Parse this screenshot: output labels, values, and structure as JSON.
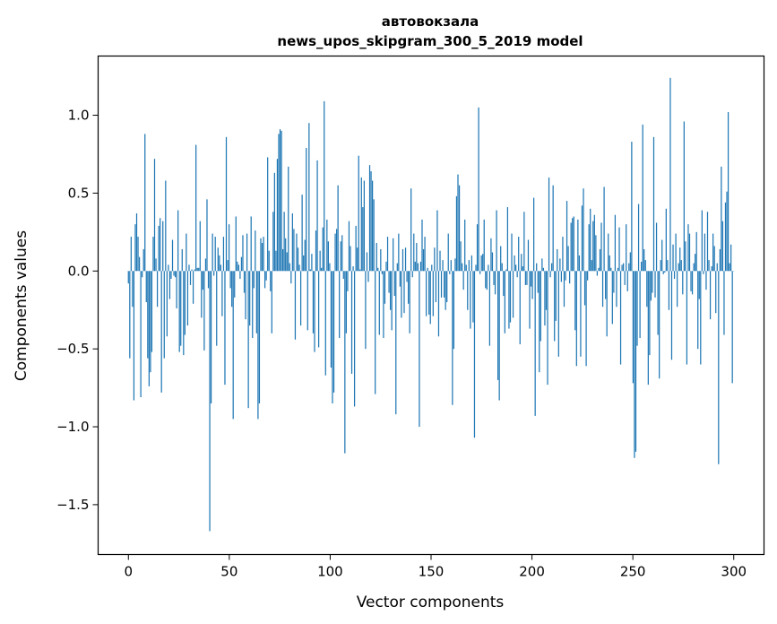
{
  "chart_data": {
    "type": "bar",
    "title_line1": "автовокзала",
    "title_line2": "news_upos_skipgram_300_5_2019 model",
    "xlabel": "Vector components",
    "ylabel": "Components values",
    "xlim": [
      -15,
      315
    ],
    "ylim": [
      -1.82,
      1.38
    ],
    "x_ticks": [
      0,
      50,
      100,
      150,
      200,
      250,
      300
    ],
    "x_tick_labels": [
      "0",
      "50",
      "100",
      "150",
      "200",
      "250",
      "300"
    ],
    "y_ticks": [
      -1.5,
      -1.0,
      -0.5,
      0.0,
      0.5,
      1.0
    ],
    "y_tick_labels": [
      "−1.5",
      "−1.0",
      "−0.5",
      "0.0",
      "0.5",
      "1.0"
    ],
    "bar_color": "#1f77b4",
    "values": [
      -0.08,
      -0.56,
      0.22,
      -0.23,
      -0.83,
      0.3,
      0.37,
      0.22,
      0.09,
      -0.81,
      -0.04,
      0.14,
      0.88,
      -0.2,
      -0.56,
      -0.74,
      -0.65,
      -0.52,
      0.22,
      0.72,
      0.08,
      -0.23,
      0.29,
      0.34,
      -0.78,
      0.32,
      -0.56,
      0.58,
      -0.42,
      0.04,
      -0.18,
      -0.05,
      0.2,
      -0.03,
      -0.04,
      -0.24,
      0.39,
      -0.52,
      -0.48,
      0.14,
      -0.54,
      -0.41,
      0.24,
      -0.35,
      0.04,
      -0.09,
      0.01,
      -0.21,
      0.01,
      0.81,
      0.02,
      0.02,
      0.32,
      -0.3,
      -0.12,
      -0.51,
      0.08,
      0.46,
      -0.11,
      -1.67,
      -0.85,
      0.24,
      -0.03,
      0.22,
      -0.48,
      0.15,
      0.1,
      0.04,
      -0.29,
      0.22,
      -0.73,
      0.86,
      0.07,
      0.3,
      -0.11,
      -0.23,
      -0.95,
      -0.17,
      0.35,
      0.06,
      0.04,
      -0.05,
      0.09,
      0.23,
      -0.14,
      -0.31,
      0.24,
      -0.88,
      -0.35,
      0.35,
      -0.43,
      -0.11,
      0.26,
      -0.4,
      -0.95,
      -0.85,
      0.21,
      0.18,
      0.22,
      -0.11,
      -0.06,
      0.73,
      0.13,
      -0.13,
      -0.4,
      0.38,
      0.63,
      0.13,
      0.72,
      0.88,
      0.91,
      0.9,
      0.14,
      0.38,
      0.21,
      0.12,
      0.67,
      0.05,
      -0.08,
      0.37,
      0.27,
      -0.44,
      0.24,
      0.15,
      0.04,
      -0.35,
      0.49,
      0.1,
      0.2,
      0.79,
      -0.38,
      0.95,
      0.01,
      0.11,
      -0.4,
      -0.52,
      0.26,
      0.71,
      -0.49,
      0.13,
      0.02,
      0.28,
      1.09,
      -0.67,
      0.33,
      0.19,
      0.05,
      -0.62,
      -0.85,
      -0.78,
      0.24,
      0.27,
      0.55,
      -0.43,
      0.19,
      0.23,
      -0.05,
      -1.17,
      -0.4,
      -0.13,
      0.32,
      0.16,
      -0.66,
      0.03,
      -0.87,
      0.29,
      0.15,
      0.74,
      0.01,
      0.6,
      0.41,
      0.58,
      -0.5,
      0.12,
      -0.07,
      0.68,
      0.64,
      0.58,
      0.46,
      -0.79,
      0.18,
      0.02,
      -0.41,
      0.14,
      -0.02,
      -0.43,
      -0.21,
      0.06,
      0.22,
      -0.14,
      -0.25,
      -0.38,
      0.21,
      -0.16,
      -0.92,
      0.05,
      0.24,
      -0.1,
      -0.3,
      0.14,
      -0.27,
      0.15,
      -0.07,
      -0.21,
      -0.4,
      0.53,
      -0.04,
      0.24,
      0.06,
      0.18,
      0.05,
      -1.0,
      0.06,
      0.33,
      0.14,
      0.22,
      -0.29,
      0.02,
      -0.28,
      -0.34,
      0.04,
      -0.29,
      0.15,
      -0.2,
      0.39,
      -0.42,
      0.13,
      -0.17,
      0.07,
      -0.17,
      -0.25,
      -0.2,
      0.24,
      -0.02,
      0.07,
      -0.86,
      -0.5,
      0.08,
      0.48,
      0.62,
      0.55,
      0.19,
      0.05,
      -0.12,
      0.33,
      0.04,
      -0.25,
      0.07,
      -0.37,
      0.1,
      -0.33,
      -1.07,
      0.04,
      0.3,
      1.05,
      -0.02,
      0.1,
      0.11,
      0.33,
      -0.11,
      -0.12,
      0.04,
      -0.48,
      0.21,
      0.12,
      -0.09,
      -0.15,
      0.39,
      -0.7,
      -0.83,
      0.16,
      0.05,
      -0.16,
      -0.4,
      0.01,
      0.41,
      -0.37,
      -0.33,
      0.24,
      -0.3,
      0.1,
      0.04,
      -0.04,
      0.22,
      -0.47,
      0.11,
      0.03,
      0.38,
      -0.09,
      -0.09,
      0.2,
      -0.37,
      -0.1,
      -0.18,
      0.47,
      -0.93,
      0.05,
      -0.14,
      -0.65,
      -0.45,
      0.08,
      0.02,
      -0.35,
      -0.25,
      -0.73,
      0.6,
      -0.04,
      0.05,
      0.55,
      -0.45,
      -0.32,
      0.14,
      -0.55,
      0.08,
      -0.07,
      0.22,
      -0.23,
      -0.06,
      0.45,
      0.16,
      -0.08,
      0.31,
      0.34,
      0.35,
      -0.38,
      -0.61,
      0.33,
      0.1,
      -0.55,
      0.42,
      0.53,
      -0.22,
      -0.61,
      -0.06,
      0.3,
      0.4,
      0.07,
      0.32,
      0.36,
      0.23,
      -0.03,
      0.02,
      0.14,
      0.31,
      -0.23,
      0.54,
      -0.18,
      -0.42,
      0.24,
      0.1,
      0.02,
      -0.34,
      -0.14,
      0.36,
      -0.23,
      0.02,
      0.28,
      -0.6,
      0.04,
      0.05,
      -0.09,
      0.3,
      -0.13,
      0.05,
      0.12,
      0.83,
      -0.72,
      -1.2,
      -1.16,
      -0.48,
      0.43,
      -0.43,
      0.06,
      0.94,
      0.14,
      0.07,
      -0.23,
      -0.73,
      -0.54,
      -0.19,
      -0.14,
      0.86,
      -0.17,
      0.31,
      -0.41,
      -0.69,
      0.07,
      0.2,
      -0.02,
      -0.01,
      0.4,
      0.07,
      -0.25,
      1.24,
      -0.57,
      0.17,
      -0.05,
      0.24,
      -0.23,
      0.05,
      0.15,
      0.07,
      -0.15,
      0.96,
      0.19,
      -0.6,
      0.3,
      0.24,
      -0.13,
      -0.15,
      0.05,
      0.11,
      0.25,
      -0.5,
      -0.18,
      -0.6,
      0.39,
      -0.02,
      0.24,
      -0.12,
      0.38,
      0.07,
      -0.31,
      0.03,
      0.24,
      0.16,
      -0.27,
      0.05,
      -1.24,
      0.14,
      0.67,
      0.32,
      -0.41,
      0.44,
      0.51,
      1.02,
      0.05,
      0.17,
      -0.72,
      0.0
    ]
  }
}
